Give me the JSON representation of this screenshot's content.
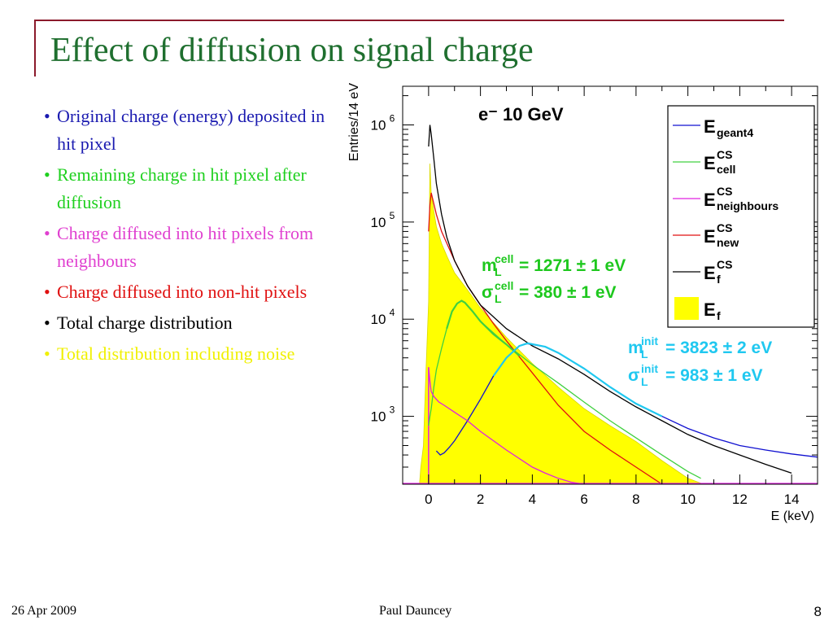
{
  "slide": {
    "title": "Effect of diffusion on signal charge",
    "bullets": [
      {
        "text": "Original charge (energy) deposited in hit pixel",
        "color": "#1a1ab0"
      },
      {
        "text": "Remaining charge in hit pixel after diffusion",
        "color": "#1fd01f"
      },
      {
        "text": "Charge diffused into hit pixels from neighbours",
        "color": "#e040d0"
      },
      {
        "text": "Charge diffused into non-hit pixels",
        "color": "#e01010"
      },
      {
        "text": "Total charge distribution",
        "color": "#000000"
      },
      {
        "text": "Total distribution including noise",
        "color": "#f0f000"
      }
    ],
    "footer": {
      "date": "26 Apr 2009",
      "author": "Paul Dauncey",
      "page": "8"
    }
  },
  "chart_data": {
    "type": "line",
    "title": "e⁻ 10 GeV",
    "xlabel": "E (keV)",
    "ylabel": "Entries/14 eV",
    "xlim": [
      -1,
      15
    ],
    "ylim": [
      200,
      2500000
    ],
    "yscale": "log",
    "xticks": [
      "0",
      "2",
      "4",
      "6",
      "8",
      "10",
      "12",
      "14"
    ],
    "yticks": [
      {
        "base": "10",
        "exp": "3",
        "value": 1000
      },
      {
        "base": "10",
        "exp": "4",
        "value": 10000
      },
      {
        "base": "10",
        "exp": "5",
        "value": 100000
      },
      {
        "base": "10",
        "exp": "6",
        "value": 1000000
      }
    ],
    "legend": [
      {
        "main": "E",
        "sup": "",
        "sub": "geant4",
        "color": "#1010d0",
        "style": "line"
      },
      {
        "main": "E",
        "sup": "CS",
        "sub": "cell",
        "color": "#40d040",
        "style": "line"
      },
      {
        "main": "E",
        "sup": "CS",
        "sub": "neighbours",
        "color": "#e020e0",
        "style": "line"
      },
      {
        "main": "E",
        "sup": "CS",
        "sub": "new",
        "color": "#e01010",
        "style": "line"
      },
      {
        "main": "E",
        "sup": "CS",
        "sub": "f",
        "color": "#000000",
        "style": "line"
      },
      {
        "main": "E",
        "sup": "",
        "sub": "f",
        "color": "#ffff00",
        "style": "fill"
      }
    ],
    "annotations": [
      {
        "color": "#1ec81e",
        "sym": "m",
        "sub": "L",
        "sup": "cell",
        "text": " = 1271 ± 1 eV"
      },
      {
        "color": "#1ec81e",
        "sym": "σ",
        "sub": "L",
        "sup": "cell",
        "text": " = 380 ± 1 eV"
      },
      {
        "color": "#20c8f0",
        "sym": "m",
        "sub": "L",
        "sup": "init",
        "text": " = 3823 ± 2 eV"
      },
      {
        "color": "#20c8f0",
        "sym": "σ",
        "sub": "L",
        "sup": "init",
        "text": " = 983 ± 1 eV"
      }
    ],
    "series": [
      {
        "name": "E_f (with noise)",
        "color": "#ffff00",
        "x": [
          -0.35,
          -0.3,
          -0.2,
          -0.1,
          0.0,
          0.05,
          0.1,
          0.2,
          0.3,
          0.5,
          0.7,
          1.0,
          1.5,
          2.0,
          3.0,
          4.0,
          5.0,
          6.0,
          7.0,
          8.0,
          9.0,
          10.0,
          10.6
        ],
        "y": [
          200,
          300,
          500,
          3000,
          15000,
          400000,
          200000,
          130000,
          90000,
          60000,
          45000,
          30000,
          20000,
          13000,
          6500,
          3500,
          2000,
          1200,
          800,
          550,
          350,
          230,
          200
        ]
      },
      {
        "name": "E_geant4",
        "color": "#1010d0",
        "x": [
          0.3,
          0.45,
          0.6,
          0.8,
          1.0,
          1.5,
          2.0,
          2.5,
          3.0,
          3.5,
          3.8,
          4.5,
          5.0,
          6.0,
          7.0,
          8.0,
          9.0,
          10.0,
          11.0,
          12.0,
          13.0,
          14.0,
          15.0
        ],
        "y": [
          440,
          400,
          420,
          480,
          560,
          900,
          1500,
          2600,
          4000,
          5300,
          5600,
          5200,
          4500,
          3100,
          2000,
          1350,
          1000,
          750,
          600,
          500,
          450,
          410,
          380
        ]
      },
      {
        "name": "E_cell",
        "color": "#40d040",
        "x": [
          0.0,
          0.05,
          0.1,
          0.2,
          0.3,
          0.5,
          0.7,
          0.9,
          1.1,
          1.27,
          1.4,
          1.7,
          2.0,
          3.0,
          4.0,
          5.0,
          6.0,
          7.0,
          8.0,
          9.0,
          10.0,
          10.5
        ],
        "y": [
          800,
          1000,
          1200,
          2000,
          3000,
          5000,
          8000,
          12000,
          14500,
          15500,
          14800,
          12000,
          9500,
          5500,
          3400,
          2200,
          1400,
          900,
          600,
          400,
          270,
          230
        ]
      },
      {
        "name": "E_neighbours",
        "color": "#e020e0",
        "x": [
          0.0,
          0.05,
          0.1,
          0.2,
          0.4,
          0.6,
          1.0,
          1.5,
          2.0,
          3.0,
          4.0,
          4.5,
          5.0,
          5.5,
          6.0,
          6.5
        ],
        "y": [
          3200,
          2300,
          1800,
          1600,
          1400,
          1300,
          1100,
          900,
          700,
          450,
          300,
          260,
          230,
          210,
          200,
          200
        ]
      },
      {
        "name": "E_new",
        "color": "#e01010",
        "x": [
          0.0,
          0.05,
          0.1,
          0.3,
          0.5,
          1.0,
          1.5,
          2.0,
          2.5,
          3.0,
          4.0,
          5.0,
          6.0,
          7.0,
          8.0,
          9.0
        ],
        "y": [
          80000,
          150000,
          200000,
          120000,
          80000,
          40000,
          22000,
          14000,
          9000,
          6000,
          2800,
          1300,
          700,
          450,
          300,
          200
        ]
      },
      {
        "name": "E_f",
        "color": "#000000",
        "x": [
          0.0,
          0.05,
          0.1,
          0.2,
          0.3,
          0.5,
          0.7,
          1.0,
          1.5,
          2.0,
          3.0,
          4.0,
          5.0,
          6.0,
          7.0,
          8.0,
          9.0,
          10.0,
          11.0,
          12.0,
          13.0,
          14.0
        ],
        "y": [
          600000,
          1000000,
          800000,
          450000,
          250000,
          120000,
          70000,
          40000,
          22000,
          14000,
          8000,
          5300,
          3900,
          2700,
          1800,
          1250,
          900,
          650,
          500,
          400,
          320,
          260
        ]
      },
      {
        "name": "fit_cell",
        "color": "#40d040",
        "x": [
          0.7,
          0.9,
          1.1,
          1.27,
          1.4,
          1.7,
          2.0,
          2.5,
          3.0,
          3.5
        ],
        "y": [
          8000,
          12000,
          14500,
          15500,
          14800,
          12000,
          9500,
          7000,
          5500,
          4200
        ]
      },
      {
        "name": "fit_init",
        "color": "#20c8f0",
        "x": [
          2.5,
          3.0,
          3.5,
          3.82,
          4.5,
          5.0,
          6.0,
          7.0,
          8.0,
          9.0
        ],
        "y": [
          2600,
          4000,
          5300,
          5650,
          5200,
          4500,
          3100,
          2000,
          1350,
          1000
        ]
      }
    ]
  }
}
